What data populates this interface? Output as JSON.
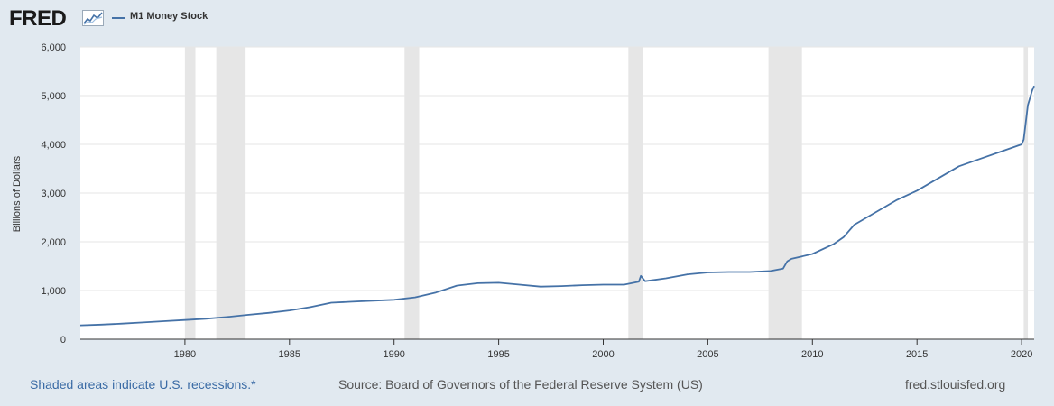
{
  "header": {
    "logo": "FRED",
    "logo_icon": "fred-graph-icon"
  },
  "legend": {
    "label": "M1 Money Stock",
    "color": "#4572a7"
  },
  "footer": {
    "note": "Shaded areas indicate U.S. recessions.*",
    "source": "Source: Board of Governors of the Federal Reserve System (US)",
    "url": "fred.stlouisfed.org"
  },
  "colors": {
    "background": "#e1e9f0",
    "plot_background": "#ffffff",
    "recession": "#e6e6e6",
    "line": "#4572a7",
    "grid": "#e6e6e6"
  },
  "chart_data": {
    "type": "line",
    "title": "",
    "xlabel": "",
    "ylabel": "Billions of Dollars",
    "xlim": [
      1975.0,
      2020.6
    ],
    "ylim": [
      0,
      6000
    ],
    "grid": true,
    "y_ticks": [
      0,
      1000,
      2000,
      3000,
      4000,
      5000,
      6000
    ],
    "y_tick_labels": [
      "0",
      "1,000",
      "2,000",
      "3,000",
      "4,000",
      "5,000",
      "6,000"
    ],
    "x_ticks": [
      1980,
      1985,
      1990,
      1995,
      2000,
      2005,
      2010,
      2015,
      2020
    ],
    "x_tick_labels": [
      "1980",
      "1985",
      "1990",
      "1995",
      "2000",
      "2005",
      "2010",
      "2015",
      "2020"
    ],
    "recessions": [
      [
        1980.0,
        1980.5
      ],
      [
        1981.5,
        1982.9
      ],
      [
        1990.5,
        1991.2
      ],
      [
        2001.2,
        2001.9
      ],
      [
        2007.9,
        2009.5
      ],
      [
        2020.1,
        2020.3
      ]
    ],
    "series": [
      {
        "name": "M1 Money Stock",
        "x": [
          1975.0,
          1976.0,
          1977.0,
          1978.0,
          1979.0,
          1980.0,
          1981.0,
          1982.0,
          1983.0,
          1984.0,
          1985.0,
          1986.0,
          1987.0,
          1988.0,
          1989.0,
          1990.0,
          1991.0,
          1992.0,
          1993.0,
          1994.0,
          1995.0,
          1996.0,
          1997.0,
          1998.0,
          1999.0,
          2000.0,
          2001.0,
          2001.7,
          2001.8,
          2002.0,
          2003.0,
          2004.0,
          2005.0,
          2006.0,
          2007.0,
          2008.0,
          2008.6,
          2008.8,
          2009.0,
          2010.0,
          2011.0,
          2011.5,
          2011.7,
          2012.0,
          2013.0,
          2014.0,
          2015.0,
          2016.0,
          2017.0,
          2018.0,
          2019.0,
          2020.0,
          2020.1,
          2020.3,
          2020.5,
          2020.6
        ],
        "values": [
          285,
          300,
          320,
          345,
          370,
          395,
          420,
          455,
          500,
          540,
          590,
          660,
          750,
          770,
          790,
          810,
          860,
          960,
          1100,
          1150,
          1160,
          1120,
          1080,
          1090,
          1110,
          1120,
          1120,
          1180,
          1300,
          1190,
          1250,
          1330,
          1370,
          1380,
          1380,
          1400,
          1450,
          1600,
          1650,
          1750,
          1950,
          2100,
          2200,
          2350,
          2600,
          2850,
          3050,
          3300,
          3550,
          3700,
          3850,
          4000,
          4100,
          4800,
          5100,
          5200
        ]
      }
    ]
  }
}
